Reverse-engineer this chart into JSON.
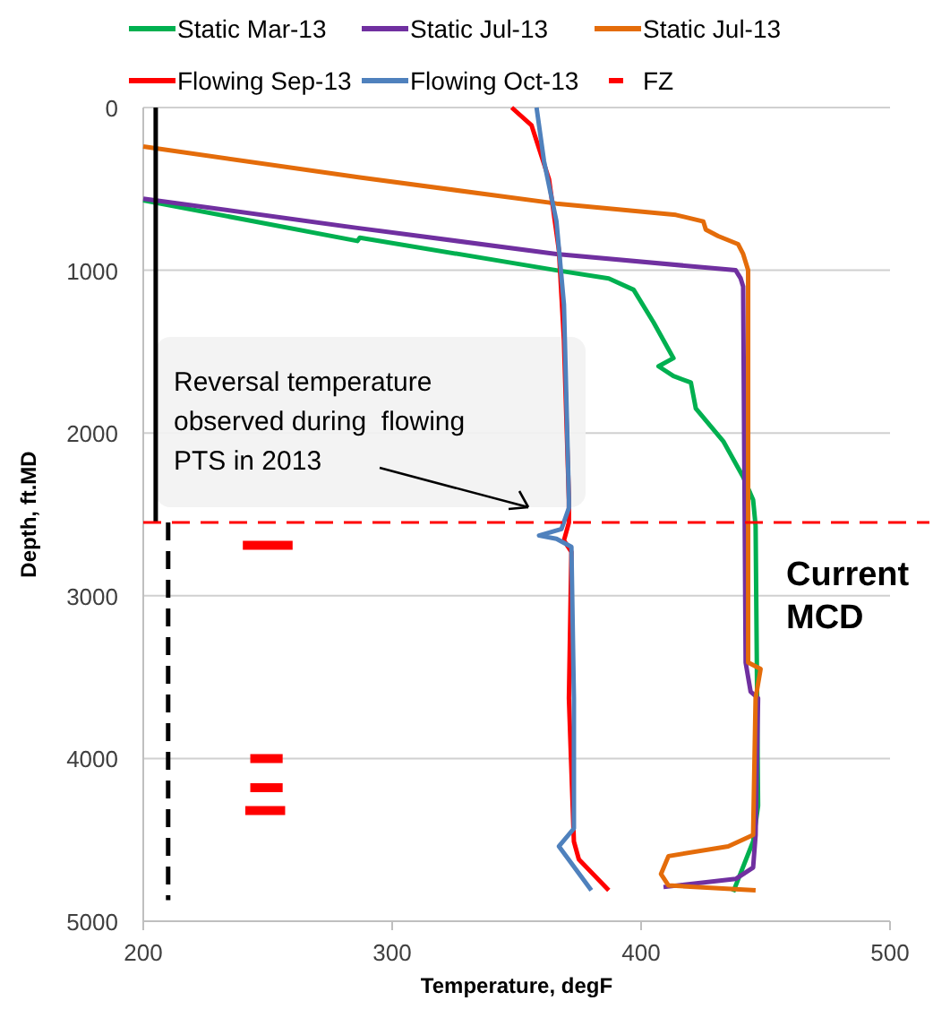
{
  "chart_data": {
    "type": "line",
    "xlabel": "Temperature, degF",
    "ylabel": "Depth, ft.MD",
    "xlim": [
      200,
      500
    ],
    "xticks": [
      200,
      300,
      400,
      500
    ],
    "ylim": [
      5000,
      0
    ],
    "yticks": [
      0,
      1000,
      2000,
      3000,
      4000,
      5000
    ],
    "grid": "y",
    "legend": "top",
    "annotations": [
      "Reversal temperature\nobserved during  flowing\nPTS in 2013"
    ],
    "ref_lines": [
      {
        "axis": "y",
        "value": 2550,
        "label": "Current\nMCD",
        "color": "#ff0000",
        "line_style": "dashed"
      }
    ],
    "series": [
      {
        "name": "Static Mar-13",
        "color": "#00b050",
        "x": [
          200,
          286,
          287,
          366,
          387,
          397,
          405,
          413,
          407,
          413,
          420,
          422,
          433,
          441,
          445,
          446,
          447,
          445,
          437
        ],
        "values": [
          570,
          820,
          800,
          1000,
          1050,
          1120,
          1320,
          1540,
          1590,
          1650,
          1690,
          1850,
          2050,
          2270,
          2410,
          2570,
          4290,
          4510,
          4820
        ]
      },
      {
        "name": "Static Jul-13",
        "color": "#7030a0",
        "x": [
          200,
          286,
          366,
          438,
          440,
          441,
          442,
          444,
          447,
          446,
          445,
          438,
          409
        ],
        "values": [
          560,
          740,
          900,
          1000,
          1050,
          1100,
          3410,
          3590,
          3630,
          4470,
          4670,
          4740,
          4790
        ]
      },
      {
        "name": "Static Jul-13",
        "color": "#e46c0a",
        "x": [
          200,
          287,
          366,
          414,
          425,
          426,
          431,
          439,
          441,
          443,
          443,
          448,
          446,
          445,
          435,
          411,
          408,
          411,
          446
        ],
        "values": [
          240,
          430,
          590,
          660,
          700,
          750,
          790,
          840,
          900,
          1000,
          3410,
          3450,
          3630,
          4470,
          4540,
          4600,
          4710,
          4780,
          4810
        ]
      },
      {
        "name": "Flowing Sep-13",
        "color": "#ff0000",
        "x": [
          348,
          356,
          363,
          367,
          369,
          371,
          371,
          369,
          372,
          371,
          373,
          375,
          387
        ],
        "values": [
          0,
          110,
          440,
          880,
          1430,
          2410,
          2550,
          2660,
          2730,
          3630,
          4510,
          4620,
          4810
        ]
      },
      {
        "name": "Flowing Oct-13",
        "color": "#4f81bd",
        "x": [
          358,
          361,
          366,
          369,
          371,
          371,
          368,
          359,
          366,
          372,
          373,
          373,
          367,
          380
        ],
        "values": [
          0,
          330,
          700,
          1210,
          2410,
          2460,
          2590,
          2630,
          2650,
          2700,
          3630,
          4430,
          4540,
          4810
        ]
      },
      {
        "name": "FZ",
        "color": "#ff0000",
        "x": [
          240,
          260
        ],
        "values": [
          2690,
          2690
        ]
      },
      {
        "color": "#ff0000",
        "x": [
          243,
          256
        ],
        "values": [
          4000,
          4000
        ]
      },
      {
        "color": "#ff0000",
        "x": [
          243,
          256
        ],
        "values": [
          4180,
          4180
        ]
      },
      {
        "color": "#ff0000",
        "x": [
          241,
          257
        ],
        "values": [
          4320,
          4320
        ]
      },
      {
        "color": "#000000",
        "x": [
          205,
          205
        ],
        "values": [
          0,
          2550
        ]
      },
      {
        "color": "#000000",
        "line_style": "dashed",
        "x": [
          210,
          210
        ],
        "values": [
          2550,
          4870
        ]
      }
    ]
  }
}
